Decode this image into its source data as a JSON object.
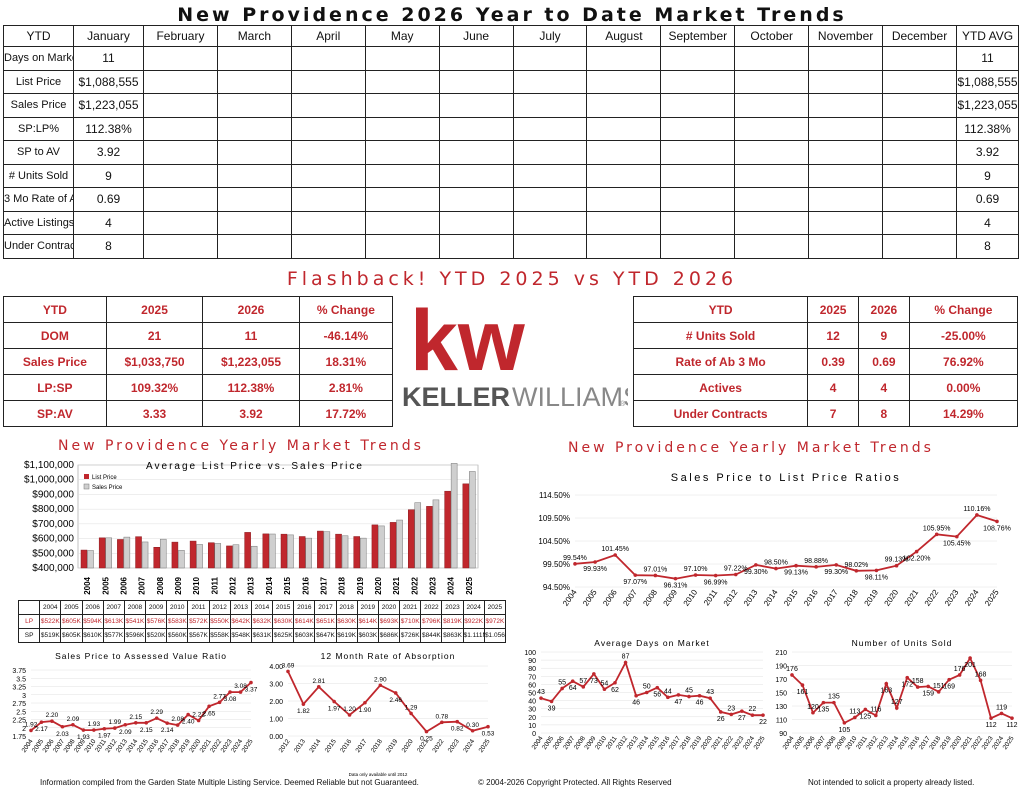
{
  "title": "New Providence 2026 Year to Date Market Trends",
  "ytd_table": {
    "headers": [
      "YTD",
      "January",
      "February",
      "March",
      "April",
      "May",
      "June",
      "July",
      "August",
      "September",
      "October",
      "November",
      "December",
      "YTD AVG"
    ],
    "rows": [
      {
        "label": "Days on Market",
        "jan": "11",
        "avg": "11"
      },
      {
        "label": "List Price",
        "jan": "$1,088,555",
        "avg": "$1,088,555"
      },
      {
        "label": "Sales Price",
        "jan": "$1,223,055",
        "avg": "$1,223,055"
      },
      {
        "label": "SP:LP%",
        "jan": "112.38%",
        "avg": "112.38%"
      },
      {
        "label": "SP to AV",
        "jan": "3.92",
        "avg": "3.92"
      },
      {
        "label": "# Units Sold",
        "jan": "9",
        "avg": "9"
      },
      {
        "label": "3 Mo Rate of Ab",
        "jan": "0.69",
        "avg": "0.69"
      },
      {
        "label": "Active Listings",
        "jan": "4",
        "avg": "4"
      },
      {
        "label": "Under Contracts",
        "jan": "8",
        "avg": "8"
      }
    ]
  },
  "flashback_title": "Flashback!  YTD 2025 vs YTD 2026",
  "compare_left": {
    "headers": [
      "YTD",
      "2025",
      "2026",
      "% Change"
    ],
    "rows": [
      [
        "DOM",
        "21",
        "11",
        "-46.14%"
      ],
      [
        "Sales Price",
        "$1,033,750",
        "$1,223,055",
        "18.31%"
      ],
      [
        "LP:SP",
        "109.32%",
        "112.38%",
        "2.81%"
      ],
      [
        "SP:AV",
        "3.33",
        "3.92",
        "17.72%"
      ]
    ]
  },
  "compare_right": {
    "headers": [
      "YTD",
      "2025",
      "2026",
      "% Change"
    ],
    "rows": [
      [
        "# Units Sold",
        "12",
        "9",
        "-25.00%"
      ],
      [
        "Rate of Ab 3 Mo",
        "0.39",
        "0.69",
        "76.92%"
      ],
      [
        "Actives",
        "4",
        "4",
        "0.00%"
      ],
      [
        "Under Contracts",
        "7",
        "8",
        "14.29%"
      ]
    ]
  },
  "logo": {
    "mark": "kw",
    "wordmark_bold": "KELLER",
    "wordmark_light": "WILLIAMS",
    "reg": "®"
  },
  "section_left_title": "New Providence Yearly Market Trends",
  "section_right_title": "New Providence Yearly Market Trends",
  "colors": {
    "brand_red": "#c0272d",
    "grey_bar": "#cfcfcf"
  },
  "chart_data": [
    {
      "id": "price",
      "type": "bar",
      "title": "Average List Price vs. Sales Price",
      "categories": [
        "2004",
        "2005",
        "2006",
        "2007",
        "2008",
        "2009",
        "2010",
        "2011",
        "2012",
        "2013",
        "2014",
        "2015",
        "2016",
        "2017",
        "2018",
        "2019",
        "2020",
        "2021",
        "2022",
        "2023",
        "2024",
        "2025"
      ],
      "series": [
        {
          "name": "List Price",
          "color": "#c0272d",
          "values": [
            522,
            605,
            594,
            613,
            541,
            576,
            583,
            572,
            550,
            642,
            632,
            630,
            614,
            651,
            630,
            614,
            693,
            710,
            796,
            819,
            922,
            972
          ],
          "labels": [
            "$522K",
            "$605K",
            "$594K",
            "$613K",
            "$541K",
            "$576K",
            "$583K",
            "$572K",
            "$550K",
            "$642K",
            "$632K",
            "$630K",
            "$614K",
            "$651K",
            "$630K",
            "$614K",
            "$693K",
            "$710K",
            "$796K",
            "$819K",
            "$922K",
            "$972K"
          ]
        },
        {
          "name": "Sales Price",
          "color": "#cfcfcf",
          "values": [
            519,
            605,
            610,
            577,
            596,
            520,
            560,
            567,
            558,
            548,
            631,
            625,
            603,
            647,
            619,
            603,
            686,
            726,
            844,
            863,
            1111,
            1056
          ],
          "labels": [
            "$519K",
            "$605K",
            "$610K",
            "$577K",
            "$596K",
            "$520K",
            "$560K",
            "$567K",
            "$558K",
            "$548K",
            "$631K",
            "$625K",
            "$603K",
            "$647K",
            "$619K",
            "$603K",
            "$686K",
            "$726K",
            "$844K",
            "$863K",
            "$1.111M",
            "$1.056"
          ]
        }
      ],
      "ylim": [
        400,
        1100
      ],
      "yticks": [
        "$400,000",
        "$500,000",
        "$600,000",
        "$700,000",
        "$800,000",
        "$900,000",
        "$1,000,000",
        "$1,100,000"
      ],
      "table_row_labels": [
        "LP",
        "SP"
      ]
    },
    {
      "id": "ratio",
      "type": "line",
      "title": "Sales Price to List Price Ratios",
      "categories": [
        "2004",
        "2005",
        "2006",
        "2007",
        "2008",
        "2009",
        "2010",
        "2011",
        "2012",
        "2013",
        "2014",
        "2015",
        "2016",
        "2017",
        "2018",
        "2019",
        "2020",
        "2021",
        "2022",
        "2023",
        "2024",
        "2025"
      ],
      "values": [
        99.54,
        99.93,
        101.45,
        97.07,
        97.01,
        96.31,
        97.1,
        96.99,
        97.22,
        99.3,
        98.5,
        99.13,
        98.88,
        99.3,
        98.02,
        98.11,
        99.13,
        102.2,
        105.95,
        105.45,
        110.16,
        108.76
      ],
      "labels": [
        "99.54%",
        "99.93%",
        "101.45%",
        "97.07%",
        "97.01%",
        "96.31%",
        "97.10%",
        "96.99%",
        "97.22%",
        "99.30%",
        "98.50%",
        "99.13%",
        "98.88%",
        "99.30%",
        "98.02%",
        "98.11%",
        "99.13%",
        "102.20%",
        "105.95%",
        "105.45%",
        "110.16%",
        "108.76%"
      ],
      "ylim": [
        94.5,
        114.5
      ],
      "yticks": [
        "94.50%",
        "99.50%",
        "104.50%",
        "109.50%",
        "114.50%"
      ]
    },
    {
      "id": "spav",
      "type": "line",
      "title": "Sales Price to Assessed Value Ratio",
      "categories": [
        "2004",
        "2005",
        "2006",
        "2007",
        "2008",
        "2009",
        "2010",
        "2011",
        "2012",
        "2013",
        "2014",
        "2015",
        "2016",
        "2017",
        "2018",
        "2019",
        "2020",
        "2021",
        "2022",
        "2023",
        "2024",
        "2025"
      ],
      "values": [
        1.92,
        2.17,
        2.2,
        2.03,
        2.09,
        1.93,
        1.93,
        1.97,
        1.99,
        2.09,
        2.15,
        2.15,
        2.29,
        2.14,
        2.08,
        2.4,
        2.22,
        2.65,
        2.77,
        3.08,
        3.08,
        3.37
      ],
      "labels": [
        "1.92",
        "2.17",
        "2.20",
        "2.03",
        "2.09",
        "1.93",
        "1.93",
        "1.97",
        "1.99",
        "2.09",
        "2.15",
        "2.15",
        "2.29",
        "2.14",
        "2.08",
        "2.40",
        "2.22",
        "2.65",
        "2.77",
        "3.08",
        "3.08",
        "3.37"
      ],
      "ylim": [
        1.75,
        3.75
      ],
      "yticks": [
        "1.75",
        "2",
        "2.25",
        "2.5",
        "2.75",
        "3",
        "3.25",
        "3.5",
        "3.75"
      ]
    },
    {
      "id": "absorb",
      "type": "line",
      "title": "12 Month Rate of Absorption",
      "categories": [
        "2012",
        "2013",
        "2014",
        "2015",
        "2016",
        "2017",
        "2018",
        "2019",
        "2020",
        "2021",
        "2022",
        "2023",
        "2024",
        "2025"
      ],
      "values": [
        3.69,
        1.82,
        2.81,
        1.97,
        1.2,
        1.9,
        2.9,
        2.46,
        1.29,
        0.25,
        0.78,
        0.82,
        0.3,
        0.53
      ],
      "labels": [
        "3.69",
        "1.82",
        "2.81",
        "1.97",
        "1.20",
        "1.90",
        "2.90",
        "2.46",
        "1.29",
        "0.25",
        "0.78",
        "0.82",
        "0.30",
        "0.53"
      ],
      "ylim": [
        0,
        4
      ],
      "yticks": [
        "0.00",
        "1.00",
        "2.00",
        "3.00",
        "4.00"
      ]
    },
    {
      "id": "dom",
      "type": "line",
      "title": "Average Days on Market",
      "categories": [
        "2004",
        "2005",
        "2006",
        "2007",
        "2008",
        "2009",
        "2010",
        "2011",
        "2012",
        "2013",
        "2014",
        "2015",
        "2016",
        "2017",
        "2018",
        "2019",
        "2020",
        "2021",
        "2022",
        "2023",
        "2024",
        "2025"
      ],
      "values": [
        43,
        39,
        55,
        64,
        57,
        73,
        54,
        62,
        87,
        46,
        50,
        56,
        44,
        47,
        45,
        46,
        43,
        26,
        23,
        27,
        22,
        22
      ],
      "labels": [
        "43",
        "39",
        "55",
        "64",
        "57",
        "73",
        "54",
        "62",
        "87",
        "46",
        "50",
        "56",
        "44",
        "47",
        "45",
        "46",
        "43",
        "26",
        "23",
        "27",
        "22",
        "22"
      ],
      "ylim": [
        0,
        100
      ],
      "yticks": [
        "0",
        "10",
        "20",
        "30",
        "40",
        "50",
        "60",
        "70",
        "80",
        "90",
        "100"
      ]
    },
    {
      "id": "units",
      "type": "line",
      "title": "Number of Units Sold",
      "categories": [
        "2004",
        "2005",
        "2006",
        "2007",
        "2008",
        "2009",
        "2010",
        "2011",
        "2012",
        "2013",
        "2014",
        "2015",
        "2016",
        "2017",
        "2018",
        "2019",
        "2020",
        "2021",
        "2022",
        "2023",
        "2024",
        "2025"
      ],
      "values": [
        176,
        161,
        120,
        135,
        135,
        105,
        113,
        125,
        116,
        163,
        127,
        172,
        158,
        159,
        151,
        169,
        176,
        201,
        168,
        112,
        119,
        112
      ],
      "labels": [
        "176",
        "161",
        "120",
        "135",
        "135",
        "105",
        "113",
        "125",
        "116",
        "163",
        "127",
        "172",
        "158",
        "159",
        "151",
        "169",
        "176",
        "201",
        "168",
        "112",
        "119",
        "112"
      ],
      "ylim": [
        90,
        210
      ],
      "yticks": [
        "90",
        "110",
        "130",
        "150",
        "170",
        "190",
        "210"
      ]
    }
  ],
  "notes": {
    "data_note": "Data only available until 2012"
  },
  "footer": {
    "left": "Information compiled from the Garden State Multiple Listing Service.  Deemed Reliable but not Guaranteed.",
    "center": "© 2004-2026 Copyright Protected.  All Rights Reserved",
    "right": "Not intended to solicit a property already listed."
  }
}
